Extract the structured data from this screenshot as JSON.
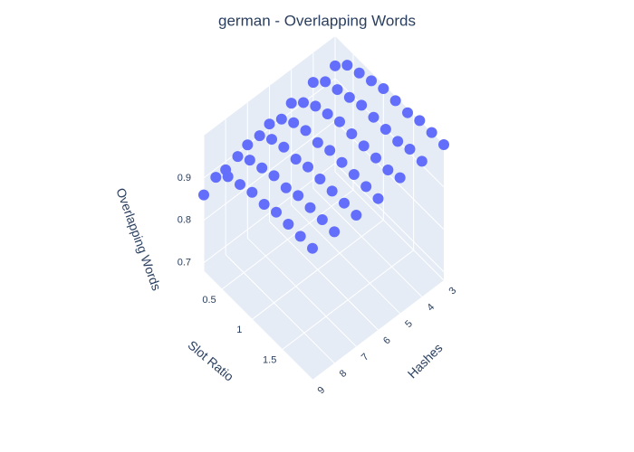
{
  "chart_data": {
    "type": "scatter3d",
    "title": "german - Overlapping Words",
    "xlabel": "Slot Ratio",
    "ylabel": "Hashes",
    "zlabel": "Overlapping Words",
    "color": "#636efa",
    "xlim": [
      0.2,
      2
    ],
    "xticks": [
      0.5,
      1,
      1.5
    ],
    "ylim": [
      3,
      9
    ],
    "yticks": [
      3,
      4,
      5,
      6,
      7,
      8,
      9
    ],
    "zlim": [
      0.68,
      1.0
    ],
    "zticks": [
      0.7,
      0.8,
      0.9
    ],
    "x": [
      0.2,
      0.2,
      0.2,
      0.2,
      0.2,
      0.2,
      0.2,
      0.4,
      0.4,
      0.4,
      0.4,
      0.4,
      0.4,
      0.4,
      0.6,
      0.6,
      0.6,
      0.6,
      0.6,
      0.6,
      0.6,
      0.8,
      0.8,
      0.8,
      0.8,
      0.8,
      0.8,
      0.8,
      1,
      1,
      1,
      1,
      1,
      1,
      1,
      1.2,
      1.2,
      1.2,
      1.2,
      1.2,
      1.2,
      1.2,
      1.4,
      1.4,
      1.4,
      1.4,
      1.4,
      1.4,
      1.4,
      1.6,
      1.6,
      1.6,
      1.6,
      1.6,
      1.6,
      1.6,
      1.8,
      1.8,
      1.8,
      1.8,
      1.8,
      1.8,
      1.8,
      2,
      2,
      2,
      2,
      2,
      2,
      2
    ],
    "y": [
      3,
      4,
      5,
      6,
      7,
      8,
      9,
      3,
      4,
      5,
      6,
      7,
      8,
      9,
      3,
      4,
      5,
      6,
      7,
      8,
      9,
      3,
      4,
      5,
      6,
      7,
      8,
      9,
      3,
      4,
      5,
      6,
      7,
      8,
      9,
      3,
      4,
      5,
      6,
      7,
      8,
      9,
      3,
      4,
      5,
      6,
      7,
      8,
      9,
      3,
      4,
      5,
      6,
      7,
      8,
      9,
      3,
      4,
      5,
      6,
      7,
      8,
      9,
      3,
      4,
      5,
      6,
      7,
      8,
      9
    ],
    "z": [
      0.93,
      0.93,
      0.92,
      0.91,
      0.9,
      0.88,
      0.86,
      0.96,
      0.96,
      0.95,
      0.95,
      0.95,
      0.94,
      0.93,
      0.97,
      0.97,
      0.97,
      0.97,
      0.97,
      0.96,
      0.96,
      0.98,
      0.98,
      0.98,
      0.98,
      0.98,
      0.97,
      0.97,
      0.99,
      0.99,
      0.99,
      0.98,
      0.98,
      0.98,
      0.98,
      0.99,
      0.99,
      0.99,
      0.99,
      0.99,
      0.98,
      0.98,
      0.99,
      0.99,
      0.99,
      0.99,
      0.99,
      0.99,
      0.99,
      1.0,
      0.99,
      0.99,
      0.99,
      0.99,
      0.99,
      0.99,
      1.0,
      1.0,
      0.99,
      0.99,
      0.99,
      0.99,
      0.99,
      1.0,
      1.0,
      1.0,
      0.99,
      0.99,
      0.99,
      0.99
    ]
  }
}
